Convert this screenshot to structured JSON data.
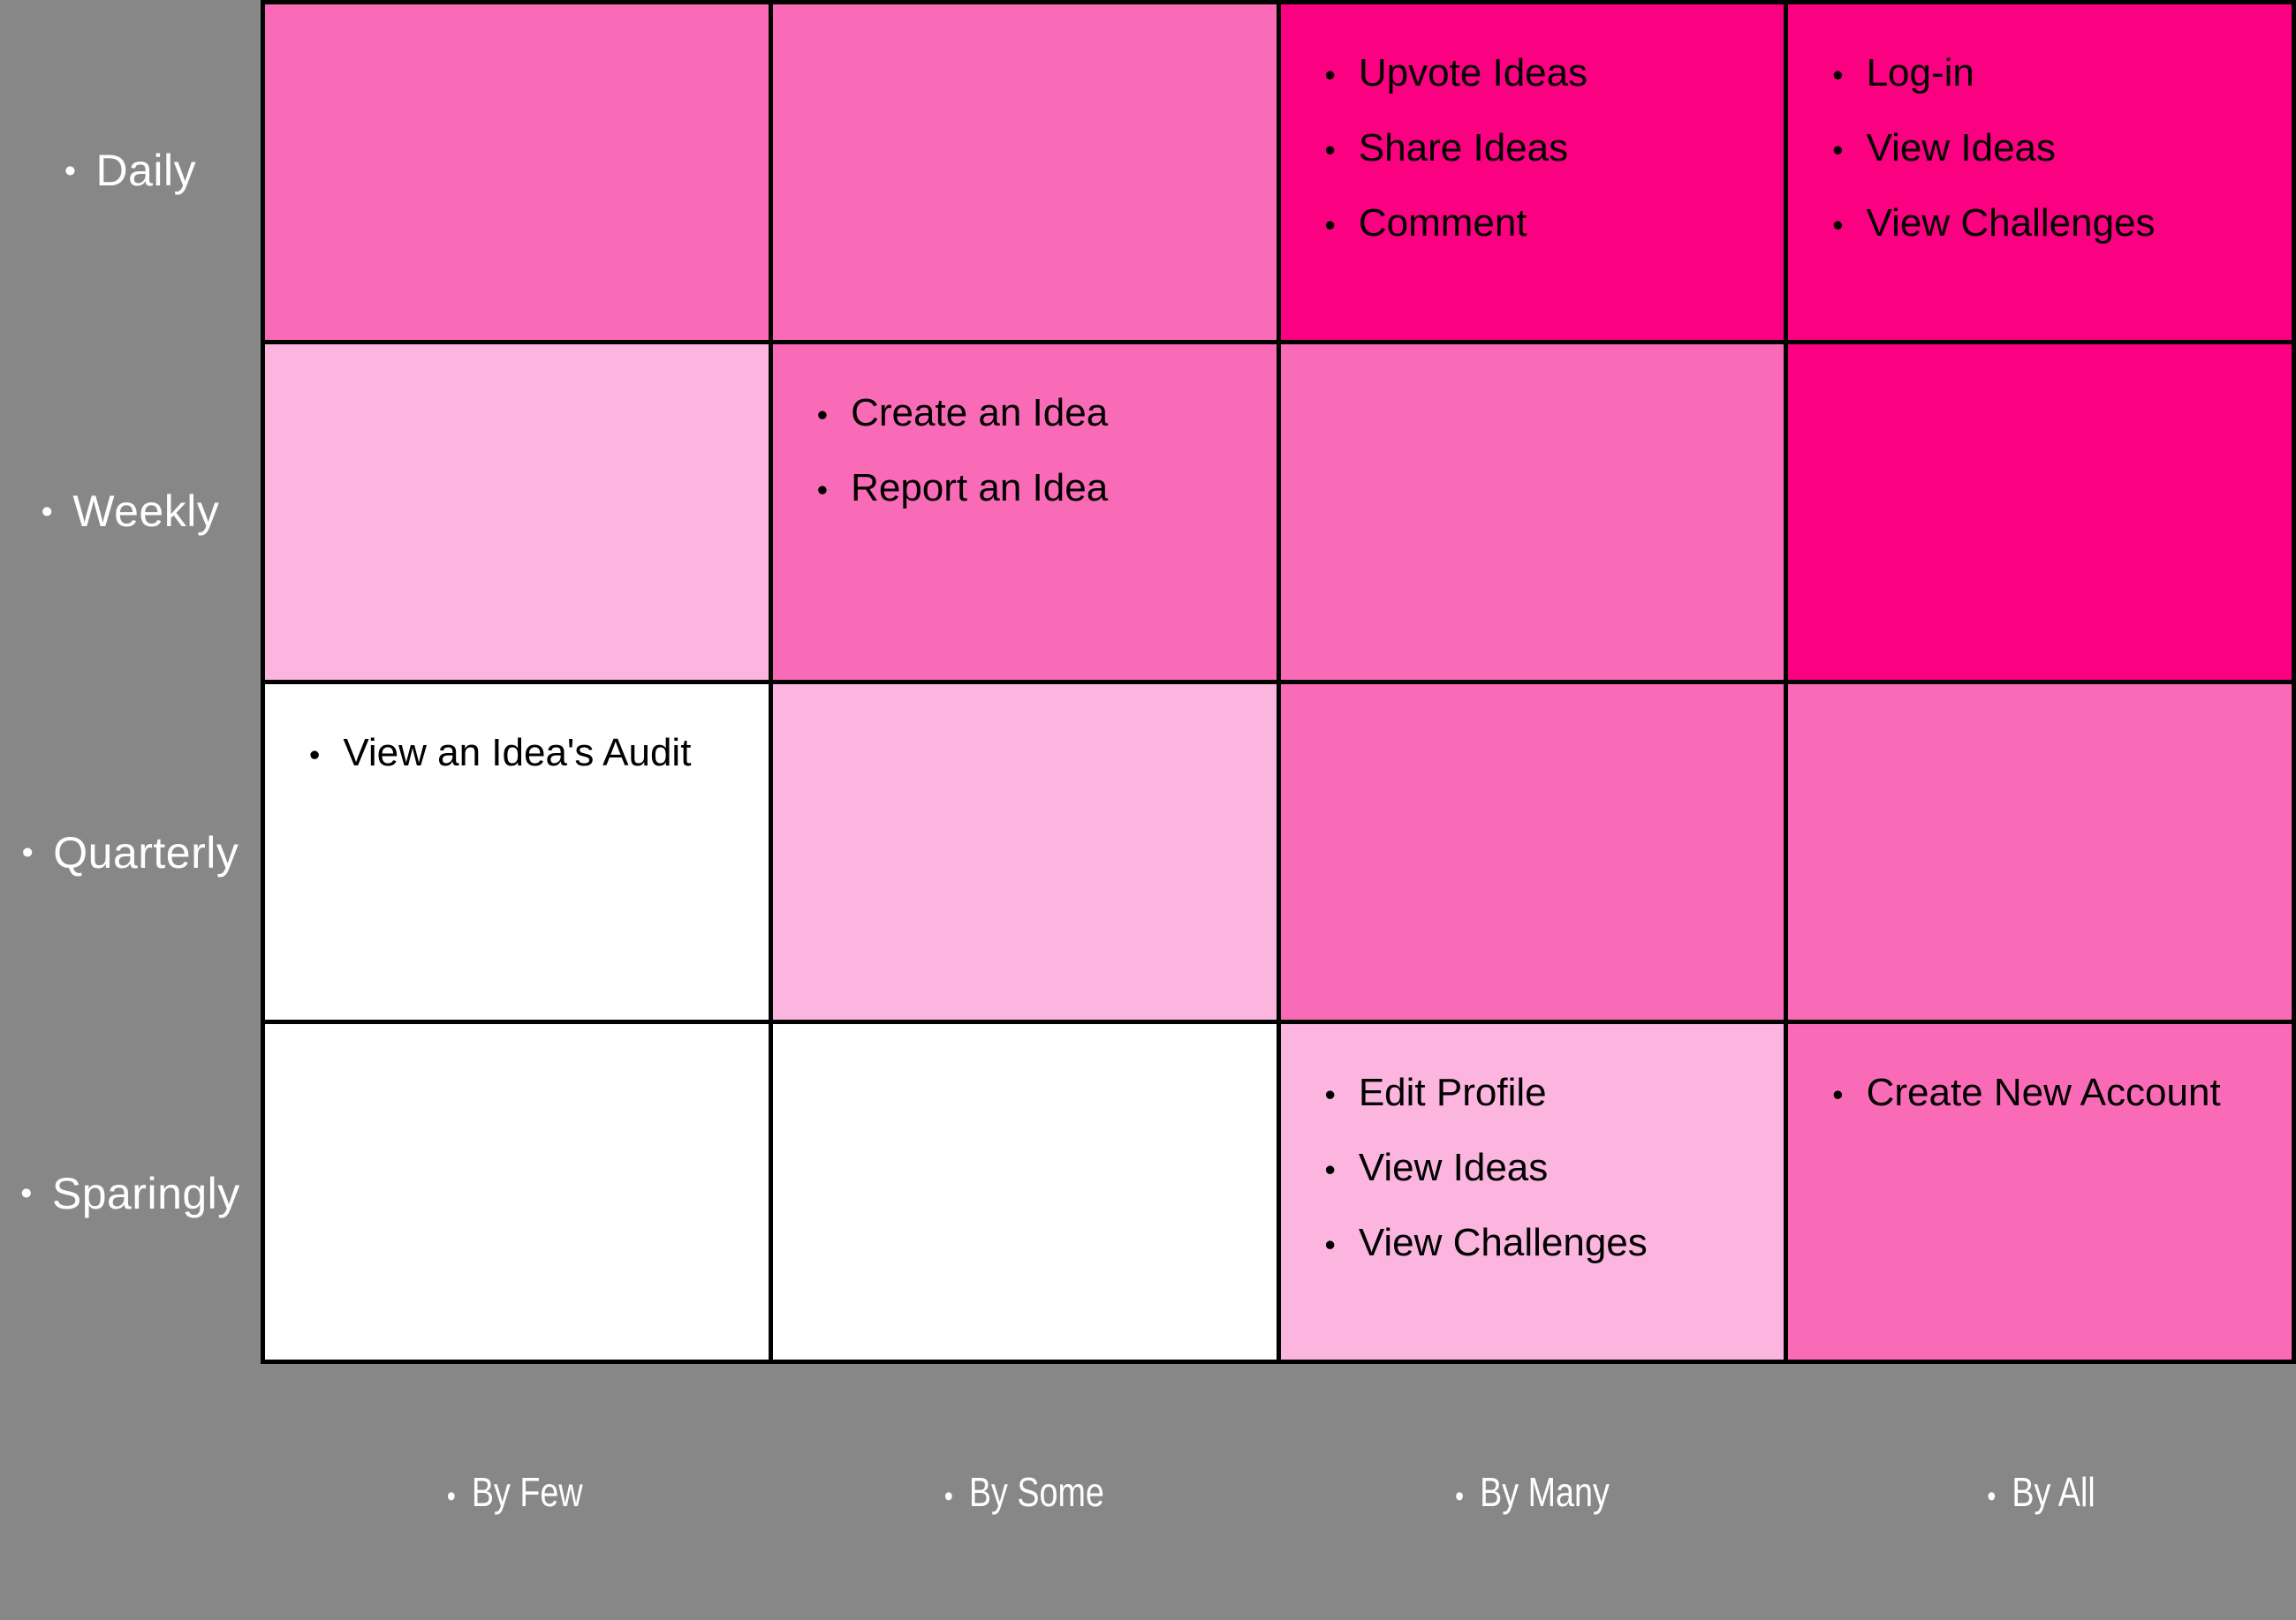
{
  "colors": {
    "background_gray": "#878787",
    "grid_line": "#000000",
    "cell_text": "#000000",
    "axis_label_text": "#FFFFFF",
    "intensity_scale": {
      "none": "#FFFFFF",
      "low": "#FBB5DF",
      "medium": "#FA6BB7",
      "high": "#FB0080"
    }
  },
  "matrix": {
    "row_labels": [
      "Daily",
      "Weekly",
      "Quarterly",
      "Sparingly"
    ],
    "column_labels": [
      "By Few",
      "By Some",
      "By Many",
      "By All"
    ],
    "cells": [
      {
        "row": "Daily",
        "column": "By Few",
        "color": "#FA6BB7",
        "items": []
      },
      {
        "row": "Daily",
        "column": "By Some",
        "color": "#FA6BB7",
        "items": []
      },
      {
        "row": "Daily",
        "column": "By Many",
        "color": "#FB0080",
        "items": [
          "Upvote Ideas",
          "Share Ideas",
          "Comment"
        ]
      },
      {
        "row": "Daily",
        "column": "By All",
        "color": "#FB0080",
        "items": [
          "Log-in",
          "View Ideas",
          "View Challenges"
        ]
      },
      {
        "row": "Weekly",
        "column": "By Few",
        "color": "#FBB5DF",
        "items": []
      },
      {
        "row": "Weekly",
        "column": "By Some",
        "color": "#FA6BB7",
        "items": [
          "Create an Idea",
          "Report an Idea"
        ]
      },
      {
        "row": "Weekly",
        "column": "By Many",
        "color": "#FA6BB7",
        "items": []
      },
      {
        "row": "Weekly",
        "column": "By All",
        "color": "#FB0080",
        "items": []
      },
      {
        "row": "Quarterly",
        "column": "By Few",
        "color": "#FFFFFF",
        "items": [
          "View an Idea's Audit"
        ]
      },
      {
        "row": "Quarterly",
        "column": "By Some",
        "color": "#FBB5DF",
        "items": []
      },
      {
        "row": "Quarterly",
        "column": "By Many",
        "color": "#FA6BB7",
        "items": []
      },
      {
        "row": "Quarterly",
        "column": "By All",
        "color": "#FA6BB7",
        "items": []
      },
      {
        "row": "Sparingly",
        "column": "By Few",
        "color": "#FFFFFF",
        "items": []
      },
      {
        "row": "Sparingly",
        "column": "By Some",
        "color": "#FFFFFF",
        "items": []
      },
      {
        "row": "Sparingly",
        "column": "By Many",
        "color": "#FBB5DF",
        "items": [
          "Edit Profile",
          "View Ideas",
          "View Challenges"
        ]
      },
      {
        "row": "Sparingly",
        "column": "By All",
        "color": "#FA6BB7",
        "items": [
          "Create New Account"
        ]
      }
    ]
  }
}
